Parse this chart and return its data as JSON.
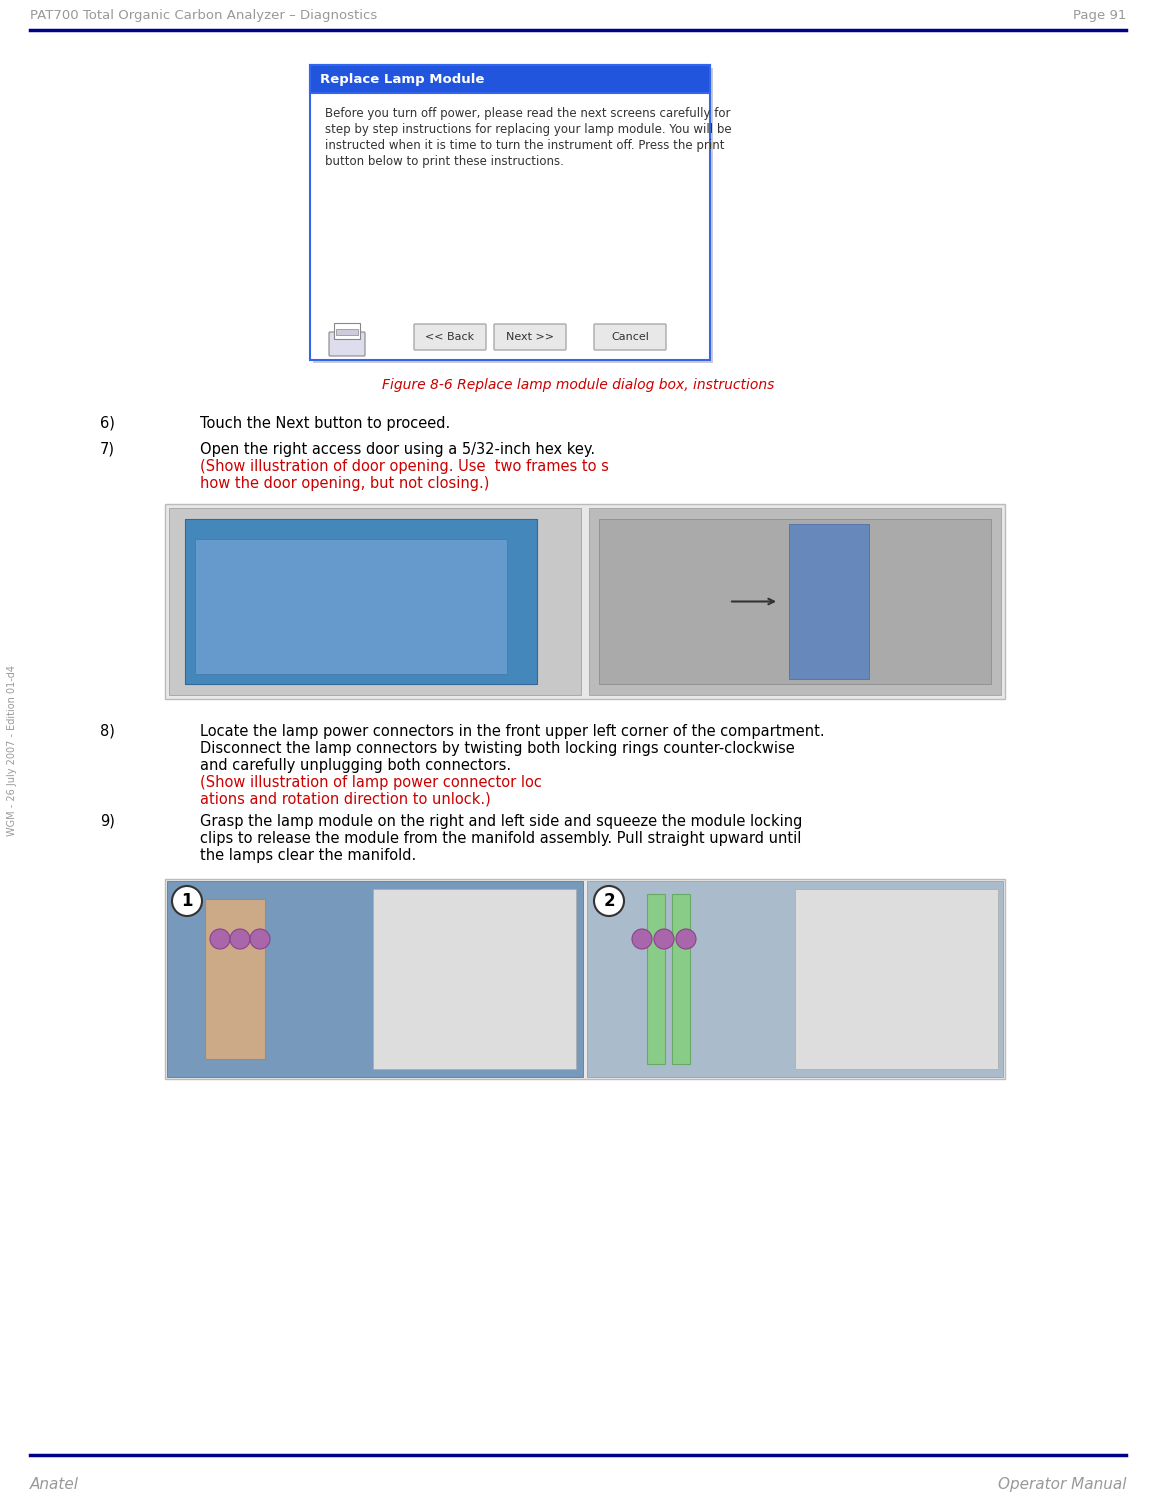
{
  "page_title_left": "PAT700 Total Organic Carbon Analyzer – Diagnostics",
  "page_title_right": "Page 91",
  "footer_left": "Anatel",
  "footer_right": "Operator Manual",
  "sidebar_text": "WGM - 26 July 2007 - Edition 01-d4",
  "figure_caption": "Figure 8-6 Replace lamp module dialog box, instructions",
  "dialog_title": "Replace Lamp Module",
  "dialog_body_line1": "Before you turn off power, please read the next screens carefully for",
  "dialog_body_line2": "step by step instructions for replacing your lamp module. You will be",
  "dialog_body_line3": "instructed when it is time to turn the instrument off. Press the print",
  "dialog_body_line4": "button below to print these instructions.",
  "btn_back": "<< Back",
  "btn_next": "Next >>",
  "btn_cancel": "Cancel",
  "step6_num": "6)",
  "step6_text": "Touch the Next button to proceed.",
  "step7_num": "7)",
  "step7_text_normal": "Open the right access door using a 5/32-inch hex key. ",
  "step7_text_red": "(Show illustration of door opening. Use  two frames to show the door opening, but not closing.)",
  "step8_num": "8)",
  "step8_text_line1": "Locate the lamp power connectors in the front upper left corner of the compartment.",
  "step8_text_line2": "Disconnect the lamp connectors by twisting both locking rings counter-clockwise",
  "step8_text_line3": "and carefully unplugging both connectors. ",
  "step8_text_red": "(Show illustration of lamp power connector locations and rotation direction to unlock.)",
  "step9_num": "9)",
  "step9_text_line1": "Grasp the lamp module on the right and left side and squeeze the module locking",
  "step9_text_line2": "clips to release the module from the manifold assembly. Pull straight upward until",
  "step9_text_line3": "the lamps clear the manifold.",
  "header_line_color": "#00008B",
  "footer_line_color": "#00008B",
  "title_color": "#999999",
  "caption_color": "#CC0000",
  "body_text_color": "#000000",
  "red_text_color": "#CC0000",
  "dialog_bg": "#FFFFFF",
  "dialog_header_bg": "#2255DD",
  "dialog_header_text": "#FFFFFF",
  "dialog_border": "#3366EE",
  "button_bg": "#E8E8E8",
  "button_border": "#AAAAAA",
  "background_color": "#FFFFFF"
}
